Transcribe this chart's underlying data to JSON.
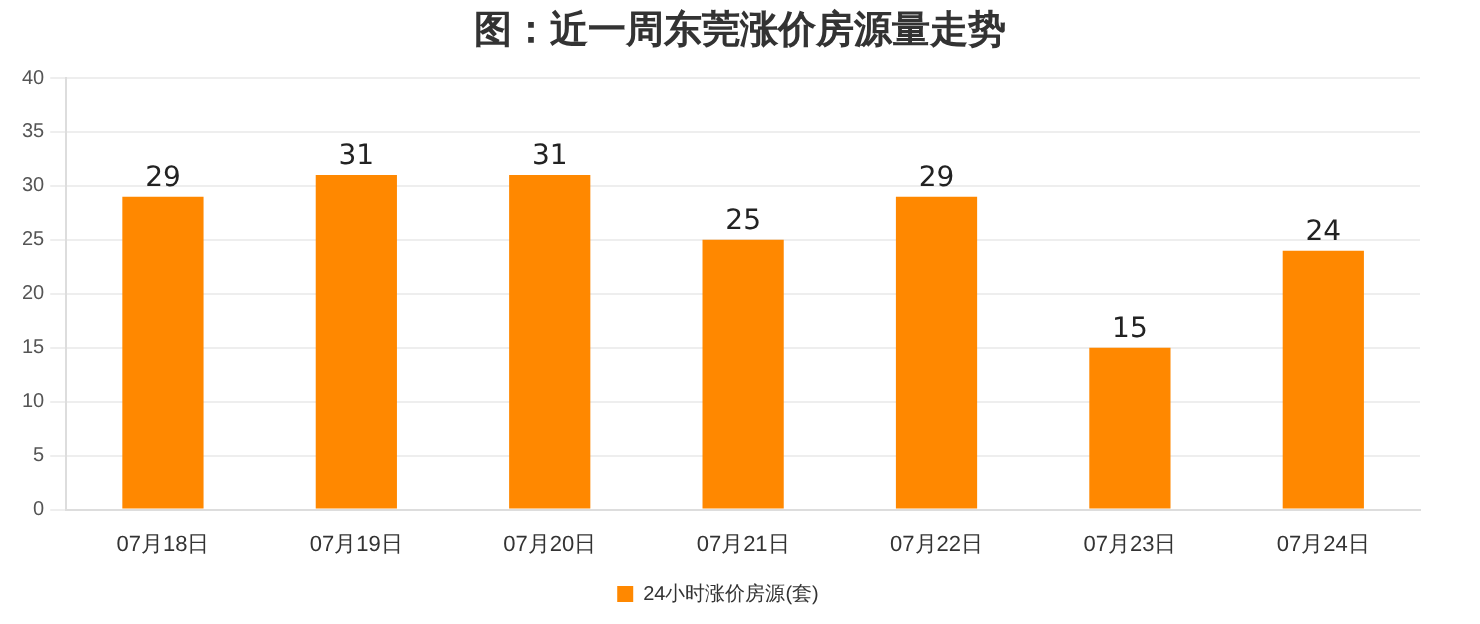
{
  "chart_data": {
    "type": "bar",
    "title": "图：近一周东莞涨价房源量走势",
    "categories": [
      "07月18日",
      "07月19日",
      "07月20日",
      "07月21日",
      "07月22日",
      "07月23日",
      "07月24日"
    ],
    "series": [
      {
        "name": "24小时涨价房源(套)",
        "color": "#ff8800",
        "values": [
          29,
          31,
          31,
          25,
          29,
          15,
          24
        ]
      }
    ],
    "ylim": [
      0,
      40
    ],
    "yticks": [
      0,
      5,
      10,
      15,
      20,
      25,
      30,
      35,
      40
    ],
    "grid": "y",
    "legend": "bottom",
    "data_labels": true
  }
}
